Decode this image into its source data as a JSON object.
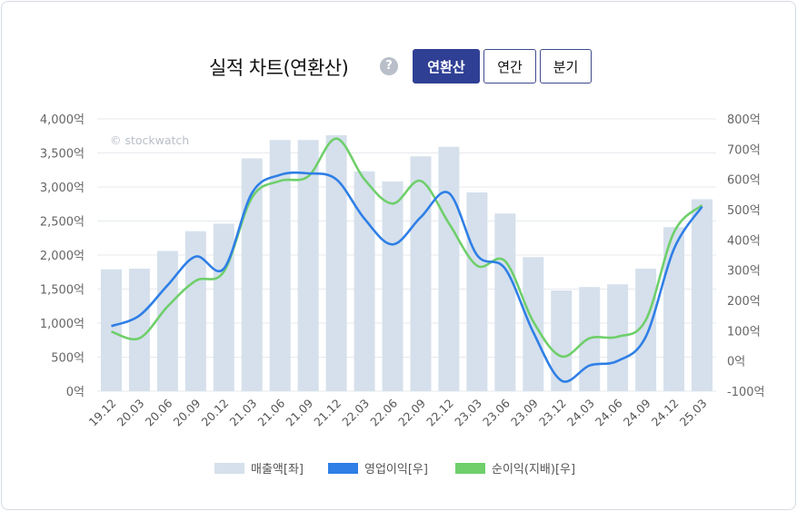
{
  "header": {
    "title": "실적 차트(연환산)",
    "help_icon": "?",
    "tabs": [
      {
        "label": "연환산",
        "active": true
      },
      {
        "label": "연간",
        "active": false
      },
      {
        "label": "분기",
        "active": false
      }
    ]
  },
  "watermark": "© stockwatch",
  "colors": {
    "bars": "#d5e0ec",
    "operating_profit": "#2f7fe6",
    "net_income": "#6fcf6b",
    "active_tab": "#2f3f94"
  },
  "chart_data": {
    "type": "bar",
    "categories": [
      "19.12",
      "20.03",
      "20.06",
      "20.09",
      "20.12",
      "21.03",
      "21.06",
      "21.09",
      "21.12",
      "22.03",
      "22.06",
      "22.09",
      "22.12",
      "23.03",
      "23.06",
      "23.09",
      "23.12",
      "24.03",
      "24.06",
      "24.09",
      "24.12",
      "25.03"
    ],
    "left_axis": {
      "ticks": [
        "4,000억",
        "3,500억",
        "3,000억",
        "2,500억",
        "2,000억",
        "1,500억",
        "1,000억",
        "500억",
        "0억"
      ],
      "ylim": [
        0,
        4000
      ]
    },
    "right_axis": {
      "ticks": [
        "800억",
        "700억",
        "600억",
        "500억",
        "400억",
        "300억",
        "200억",
        "100억",
        "0억",
        "-100억"
      ],
      "ylim": [
        -100,
        800
      ]
    },
    "series": [
      {
        "name": "매출액[좌]",
        "type": "bar",
        "axis": "left",
        "values": [
          1790,
          1800,
          2060,
          2350,
          2460,
          3420,
          3690,
          3690,
          3760,
          3230,
          3080,
          3450,
          3590,
          2920,
          2610,
          1970,
          1480,
          1530,
          1570,
          1800,
          2410,
          2820
        ]
      },
      {
        "name": "영업이익[우]",
        "type": "line",
        "axis": "right",
        "values": [
          115,
          150,
          250,
          345,
          305,
          555,
          615,
          620,
          600,
          470,
          385,
          475,
          555,
          350,
          305,
          95,
          -65,
          -15,
          0,
          80,
          370,
          510
        ]
      },
      {
        "name": "순이익(지배)[우]",
        "type": "line",
        "axis": "right",
        "values": [
          97,
          75,
          180,
          265,
          295,
          540,
          595,
          610,
          735,
          600,
          520,
          595,
          455,
          315,
          330,
          130,
          15,
          75,
          80,
          135,
          425,
          515
        ]
      }
    ],
    "legend_position": "bottom-center",
    "grid": true
  }
}
